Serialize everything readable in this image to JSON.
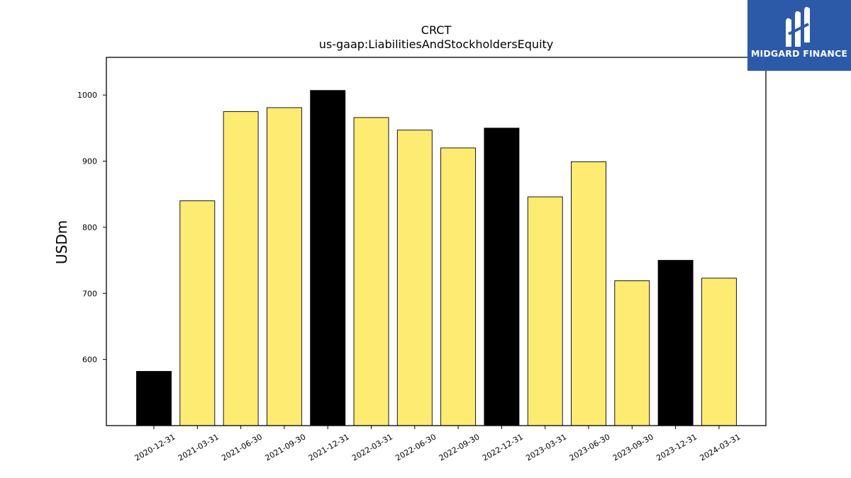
{
  "brand": {
    "name": "MIDGARD FINANCE",
    "bg_color": "#2c5aa8",
    "icon": "midgard-logo-icon"
  },
  "colors": {
    "bar_default": "#fdeb72",
    "bar_highlight": "#000000",
    "bar_edge": "#000000"
  },
  "chart_data": {
    "type": "bar",
    "title": "CRCT",
    "subtitle": "us-gaap:LiabilitiesAndStockholdersEquity",
    "xlabel": "",
    "ylabel": "USDm",
    "ylim": [
      500,
      1057
    ],
    "yticks": [
      600,
      700,
      800,
      900,
      1000
    ],
    "grid": false,
    "legend": null,
    "categories": [
      "2020-12-31",
      "2021-03-31",
      "2021-06-30",
      "2021-09-30",
      "2021-12-31",
      "2022-03-31",
      "2022-06-30",
      "2022-09-30",
      "2022-12-31",
      "2023-03-31",
      "2023-06-30",
      "2023-09-30",
      "2023-12-31",
      "2024-03-31"
    ],
    "values": [
      582,
      840,
      975,
      981,
      1007,
      966,
      947,
      920,
      950,
      846,
      899,
      719,
      750,
      723
    ],
    "highlighted": [
      true,
      false,
      false,
      false,
      true,
      false,
      false,
      false,
      true,
      false,
      false,
      false,
      true,
      false
    ]
  }
}
